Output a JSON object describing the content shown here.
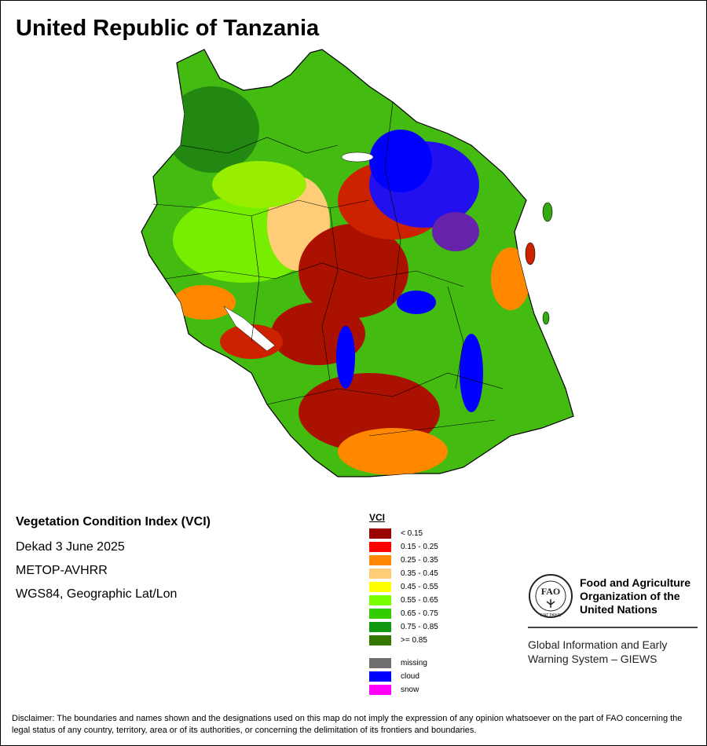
{
  "title": "United Republic of Tanzania",
  "info": {
    "product": "Vegetation Condition Index (VCI)",
    "period": "Dekad 3 June 2025",
    "sensor": "METOP-AVHRR",
    "projection": "WGS84, Geographic Lat/Lon"
  },
  "legend": {
    "title": "VCI",
    "classes": [
      {
        "label": "< 0.15",
        "color": "#990000"
      },
      {
        "label": "0.15 - 0.25",
        "color": "#ff0000"
      },
      {
        "label": "0.25 - 0.35",
        "color": "#ff8800"
      },
      {
        "label": "0.35 - 0.45",
        "color": "#ffcc77"
      },
      {
        "label": "0.45 - 0.55",
        "color": "#ffff00"
      },
      {
        "label": "0.55 - 0.65",
        "color": "#77ff00"
      },
      {
        "label": "0.65 - 0.75",
        "color": "#33cc00"
      },
      {
        "label": "0.75 - 0.85",
        "color": "#119911"
      },
      {
        "label": ">= 0.85",
        "color": "#337700"
      }
    ],
    "other": [
      {
        "label": "missing",
        "color": "#707070"
      },
      {
        "label": "cloud",
        "color": "#0000ff"
      },
      {
        "label": "snow",
        "color": "#ff00ff"
      }
    ]
  },
  "fao": {
    "name_line1": "Food and Agriculture",
    "name_line2": "Organization of the",
    "name_line3": "United Nations",
    "logo_text": "FAO",
    "logo_motto": "FIAT PANIS",
    "giews_line1": "Global Information and Early",
    "giews_line2": "Warning System – GIEWS"
  },
  "disclaimer": "Disclaimer: The boundaries and names shown and the designations used on this map do not imply the expression of any opinion whatsoever on the part of FAO concerning the legal status of any country, territory, area or of its authorities, or concerning the delimitation of its frontiers and boundaries."
}
